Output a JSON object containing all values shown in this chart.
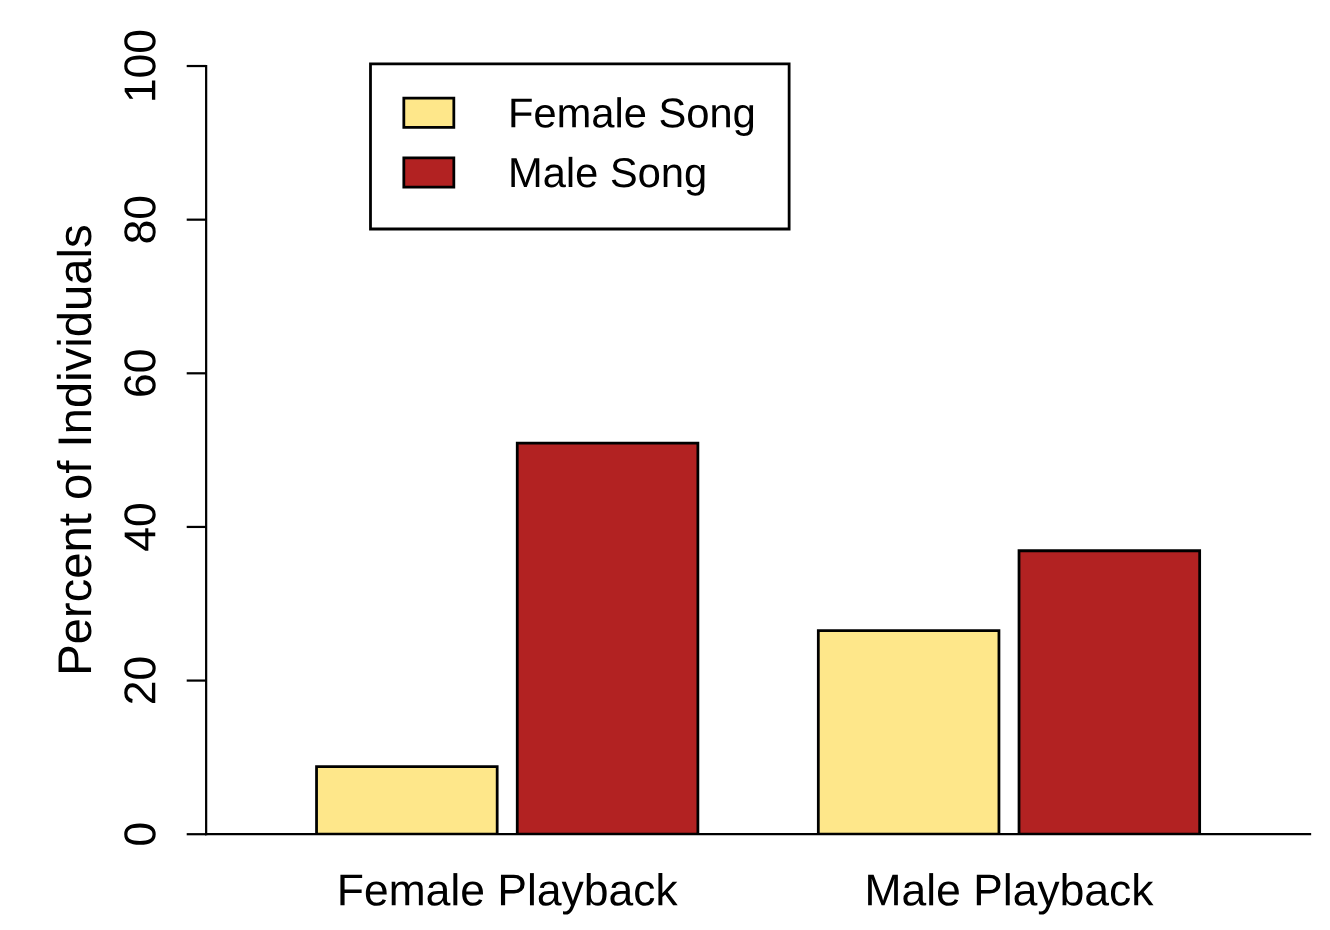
{
  "chart_data": {
    "type": "bar",
    "ylabel": "Percent of Individuals",
    "categories": [
      "Female Playback",
      "Male Playback"
    ],
    "series": [
      {
        "name": "Female Song",
        "color": "#fee78a",
        "values": [
          8.8,
          26.5
        ]
      },
      {
        "name": "Male Song",
        "color": "#b22222",
        "values": [
          50.9,
          36.9
        ]
      }
    ],
    "ylim": [
      0,
      100
    ],
    "yticks": [
      0,
      20,
      40,
      60,
      80,
      100
    ],
    "legend": "top left",
    "grid": false
  }
}
